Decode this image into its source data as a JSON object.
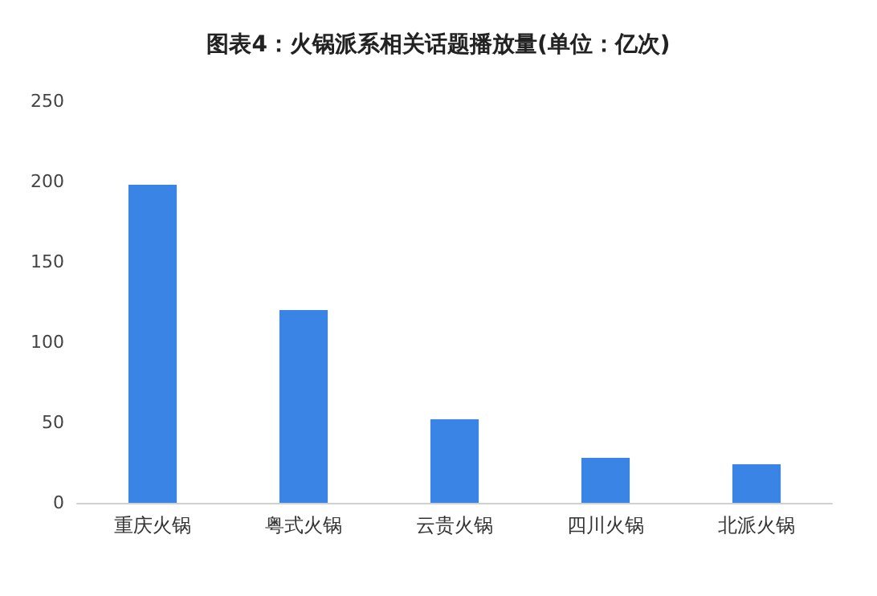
{
  "chart_data": {
    "type": "bar",
    "title": "图表4：火锅派系相关话题播放量(单位：亿次)",
    "categories": [
      "重庆火锅",
      "粤式火锅",
      "云贵火锅",
      "四川火锅",
      "北派火锅"
    ],
    "values": [
      198,
      120,
      52,
      28,
      24
    ],
    "color": "#3a84e6",
    "ylim": [
      0,
      250
    ],
    "yticks": [
      0,
      50,
      100,
      150,
      200,
      250
    ],
    "grid": false
  }
}
